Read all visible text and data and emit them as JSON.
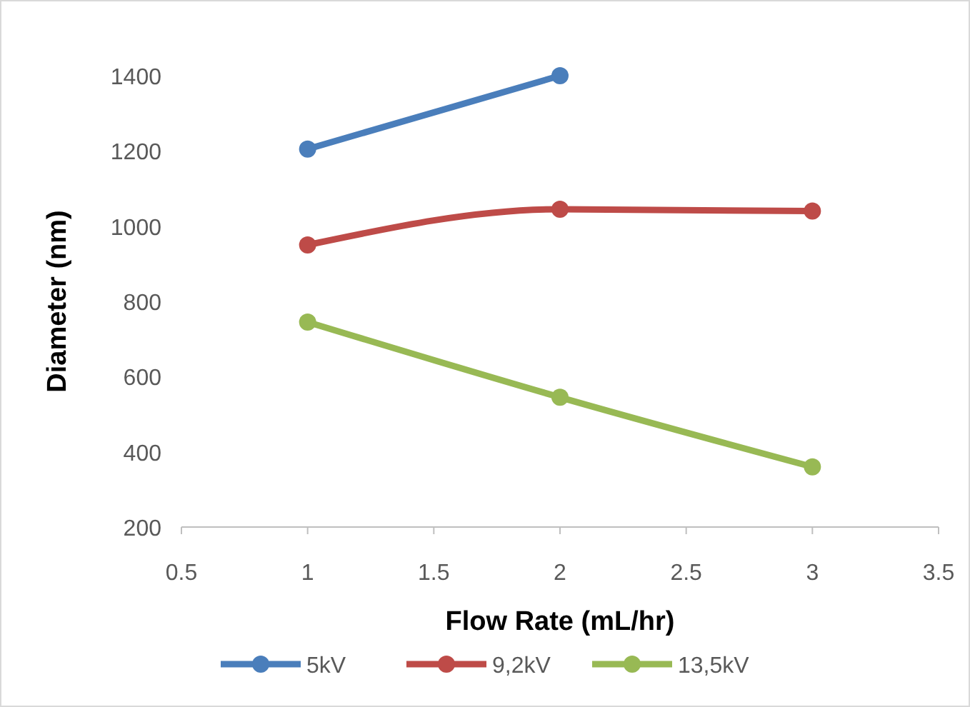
{
  "chart_data": {
    "type": "line",
    "xlabel": "Flow Rate (mL/hr)",
    "ylabel": "Diameter (nm)",
    "xlim": [
      0.5,
      3.5
    ],
    "xticks": [
      0.5,
      1,
      1.5,
      2,
      2.5,
      3,
      3.5
    ],
    "ylim": [
      200,
      1400
    ],
    "yticks": [
      200,
      400,
      600,
      800,
      1000,
      1200,
      1400
    ],
    "grid": false,
    "legend": "bottom",
    "marker": "circle",
    "line_style": "solid",
    "series": [
      {
        "name": "5kV",
        "color": "#4a7ebb",
        "x": [
          1,
          2
        ],
        "values": [
          1205,
          1400
        ]
      },
      {
        "name": "9,2kV",
        "color": "#be4b48",
        "x": [
          1,
          2,
          3
        ],
        "values": [
          950,
          1045,
          1040
        ]
      },
      {
        "name": "13,5kV",
        "color": "#98b954",
        "x": [
          1,
          2,
          3
        ],
        "values": [
          745,
          545,
          360
        ]
      }
    ]
  }
}
